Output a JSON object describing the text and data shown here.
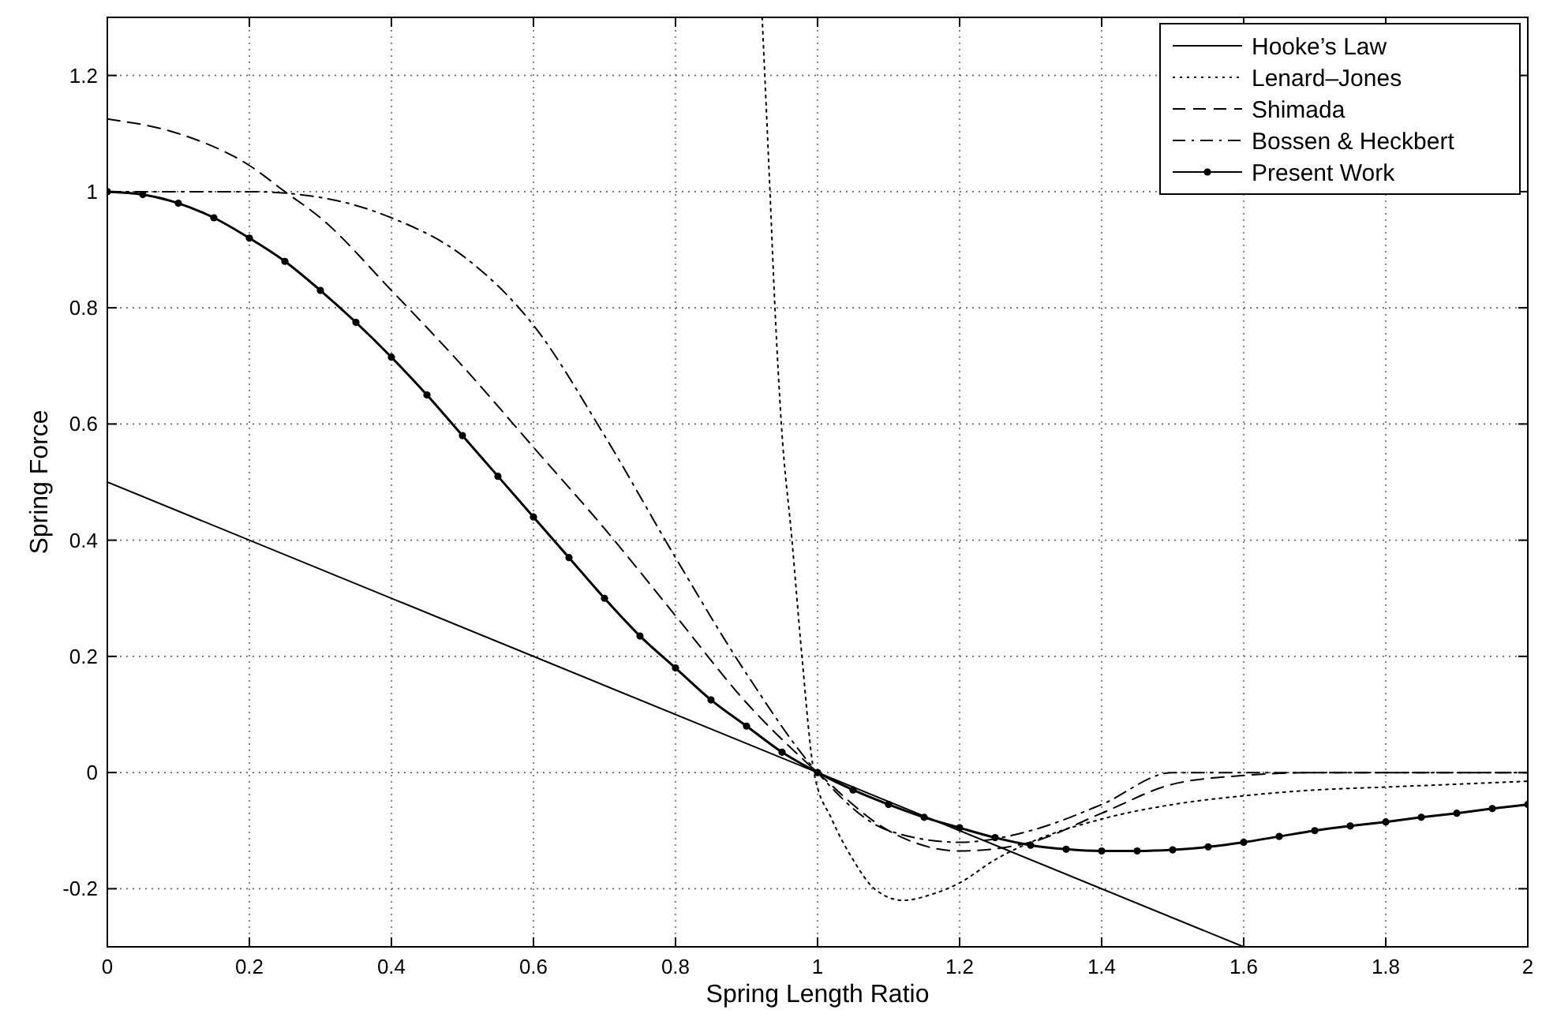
{
  "chart_data": {
    "type": "line",
    "xlabel": "Spring Length Ratio",
    "ylabel": "Spring Force",
    "xlim": [
      0,
      2
    ],
    "ylim": [
      -0.3,
      1.3
    ],
    "xticks": [
      0,
      0.2,
      0.4,
      0.6,
      0.8,
      1,
      1.2,
      1.4,
      1.6,
      1.8,
      2
    ],
    "yticks": [
      -0.2,
      0,
      0.2,
      0.4,
      0.6,
      0.8,
      1,
      1.2
    ],
    "grid": true,
    "legend": "top right",
    "series": [
      {
        "name": "Hooke’s Law",
        "color": "#000000",
        "line_style": "solid",
        "marker": "none",
        "x": [
          0,
          1.6
        ],
        "values": [
          0.5,
          -0.3
        ]
      },
      {
        "name": "Lenard–Jones",
        "color": "#000000",
        "line_style": "dotted",
        "marker": "none",
        "x": [
          0.922,
          0.933,
          0.94,
          0.949,
          0.964,
          0.978,
          0.995,
          1.02,
          1.05,
          1.08,
          1.12,
          1.16,
          1.2,
          1.25,
          1.3,
          1.4,
          1.5,
          1.6,
          1.7,
          1.8,
          1.9,
          2.0
        ],
        "values": [
          1.3,
          1.0,
          0.8,
          0.6,
          0.4,
          0.2,
          0,
          -0.08,
          -0.15,
          -0.2,
          -0.22,
          -0.21,
          -0.19,
          -0.15,
          -0.12,
          -0.08,
          -0.055,
          -0.04,
          -0.03,
          -0.025,
          -0.02,
          -0.015
        ]
      },
      {
        "name": "Shimada",
        "color": "#000000",
        "line_style": "dashed",
        "marker": "none",
        "x": [
          0,
          0.1,
          0.2,
          0.25,
          0.3,
          0.4,
          0.5,
          0.6,
          0.7,
          0.8,
          0.9,
          1.0,
          1.1,
          1.2,
          1.3,
          1.4,
          1.5,
          1.6,
          1.7,
          1.8,
          2.0
        ],
        "values": [
          1.125,
          1.1,
          1.045,
          1.0,
          0.955,
          0.83,
          0.7,
          0.56,
          0.42,
          0.27,
          0.12,
          0,
          -0.1,
          -0.135,
          -0.12,
          -0.07,
          -0.02,
          -0.005,
          0,
          0,
          0
        ]
      },
      {
        "name": "Bossen & Heckbert",
        "color": "#000000",
        "line_style": "dashdot",
        "marker": "none",
        "x": [
          0,
          0.1,
          0.2,
          0.3,
          0.4,
          0.5,
          0.6,
          0.7,
          0.8,
          0.9,
          1.0,
          1.1,
          1.2,
          1.3,
          1.4,
          1.5,
          1.6,
          1.8,
          2.0
        ],
        "values": [
          1,
          1,
          1,
          0.99,
          0.955,
          0.89,
          0.77,
          0.58,
          0.37,
          0.17,
          0,
          -0.1,
          -0.12,
          -0.1,
          -0.055,
          0,
          0,
          0,
          0
        ]
      },
      {
        "name": "Present Work",
        "color": "#000000",
        "line_style": "solid",
        "marker": "circle",
        "x": [
          0,
          0.05,
          0.1,
          0.15,
          0.2,
          0.25,
          0.3,
          0.35,
          0.4,
          0.45,
          0.5,
          0.55,
          0.6,
          0.65,
          0.7,
          0.75,
          0.8,
          0.85,
          0.9,
          0.95,
          1.0,
          1.05,
          1.1,
          1.15,
          1.2,
          1.25,
          1.3,
          1.35,
          1.4,
          1.45,
          1.5,
          1.55,
          1.6,
          1.65,
          1.7,
          1.75,
          1.8,
          1.85,
          1.9,
          1.95,
          2.0
        ],
        "values": [
          1,
          0.995,
          0.98,
          0.955,
          0.92,
          0.88,
          0.83,
          0.775,
          0.715,
          0.65,
          0.58,
          0.51,
          0.44,
          0.37,
          0.3,
          0.235,
          0.18,
          0.125,
          0.08,
          0.035,
          0,
          -0.03,
          -0.055,
          -0.077,
          -0.095,
          -0.112,
          -0.125,
          -0.132,
          -0.135,
          -0.135,
          -0.133,
          -0.128,
          -0.12,
          -0.11,
          -0.1,
          -0.092,
          -0.085,
          -0.077,
          -0.07,
          -0.062,
          -0.055
        ]
      }
    ]
  }
}
